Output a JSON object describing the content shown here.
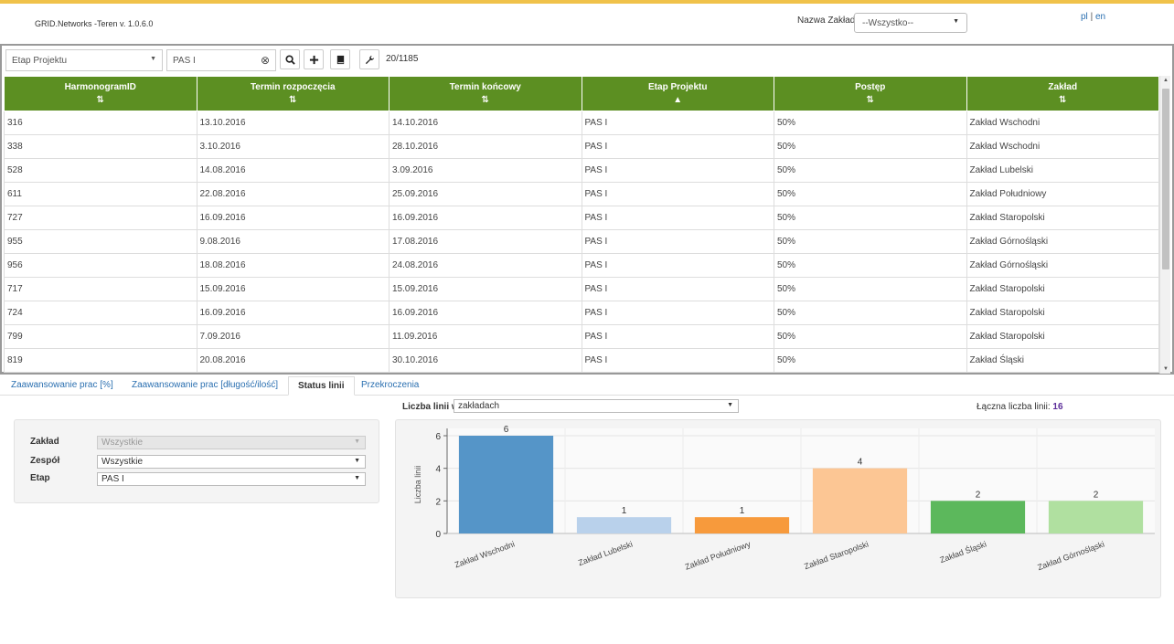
{
  "app": {
    "title": "GRID.Networks -Teren v. 1.0.6.0"
  },
  "header": {
    "zaklad_label": "Nazwa Zakładu",
    "zaklad_value": "--Wszystko--",
    "lang_pl": "pl",
    "lang_sep": " | ",
    "lang_en": "en"
  },
  "toolbar": {
    "filter_field": "Etap Projektu",
    "filter_value": "PAS I",
    "count": "20/1185"
  },
  "table": {
    "columns": [
      "HarmonogramID",
      "Termin rozpoczęcia",
      "Termin końcowy",
      "Etap Projektu",
      "Postęp",
      "Zakład"
    ],
    "sort_icons": [
      "⇅",
      "⇅",
      "⇅",
      "▲",
      "⇅",
      "⇅"
    ],
    "rows": [
      [
        "316",
        "13.10.2016",
        "14.10.2016",
        "PAS I",
        "50%",
        "Zakład Wschodni"
      ],
      [
        "338",
        "3.10.2016",
        "28.10.2016",
        "PAS I",
        "50%",
        "Zakład Wschodni"
      ],
      [
        "528",
        "14.08.2016",
        "3.09.2016",
        "PAS I",
        "50%",
        "Zakład Lubelski"
      ],
      [
        "611",
        "22.08.2016",
        "25.09.2016",
        "PAS I",
        "50%",
        "Zakład Południowy"
      ],
      [
        "727",
        "16.09.2016",
        "16.09.2016",
        "PAS I",
        "50%",
        "Zakład Staropolski"
      ],
      [
        "955",
        "9.08.2016",
        "17.08.2016",
        "PAS I",
        "50%",
        "Zakład Górnośląski"
      ],
      [
        "956",
        "18.08.2016",
        "24.08.2016",
        "PAS I",
        "50%",
        "Zakład Górnośląski"
      ],
      [
        "717",
        "15.09.2016",
        "15.09.2016",
        "PAS I",
        "50%",
        "Zakład Staropolski"
      ],
      [
        "724",
        "16.09.2016",
        "16.09.2016",
        "PAS I",
        "50%",
        "Zakład Staropolski"
      ],
      [
        "799",
        "7.09.2016",
        "11.09.2016",
        "PAS I",
        "50%",
        "Zakład Staropolski"
      ],
      [
        "819",
        "20.08.2016",
        "30.10.2016",
        "PAS I",
        "50%",
        "Zakład Śląski"
      ]
    ]
  },
  "tabs": [
    {
      "label": "Zaawansowanie prac [%]",
      "active": false
    },
    {
      "label": "Zaawansowanie prac [długość/ilość]",
      "active": false
    },
    {
      "label": "Status linii",
      "active": true
    },
    {
      "label": "Przekroczenia",
      "active": false
    }
  ],
  "filters": {
    "zaklad_label": "Zakład",
    "zaklad_value": "Wszystkie",
    "zespol_label": "Zespół",
    "zespol_value": "Wszystkie",
    "etap_label": "Etap",
    "etap_value": "PAS I"
  },
  "stats": {
    "liczba_label": "Liczba linii w",
    "liczba_value": "zakładach",
    "laczna_label": "Łączna liczba linii:",
    "laczna_value": "16"
  },
  "chart_data": {
    "type": "bar",
    "categories": [
      "Zakład Wschodni",
      "Zakład Lubelski",
      "Zakład Południowy",
      "Zakład Staropolski",
      "Zakład Śląski",
      "Zakład Górnośląski"
    ],
    "values": [
      6,
      1,
      1,
      4,
      2,
      2
    ],
    "colors": [
      "#5595c8",
      "#b9d1eb",
      "#f79a3c",
      "#fcc694",
      "#5cb85c",
      "#b0e0a0"
    ],
    "ylabel": "Liczba linii",
    "ylim": [
      0,
      6
    ],
    "yticks": [
      0,
      2,
      4,
      6
    ],
    "grid": true
  },
  "colors": {
    "header_bg": "#5c8f22",
    "accent_line": "#f0c24a",
    "link": "#2a6fb0"
  }
}
